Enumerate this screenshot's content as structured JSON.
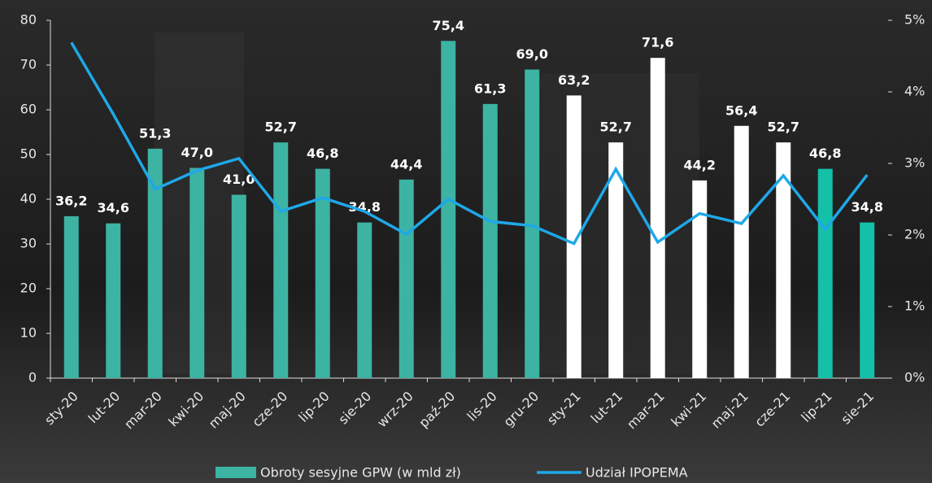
{
  "chart_data": {
    "type": "bar_line",
    "categories": [
      "sty-20",
      "lut-20",
      "mar-20",
      "kwi-20",
      "maj-20",
      "cze-20",
      "lip-20",
      "sie-20",
      "wrz-20",
      "paź-20",
      "lis-20",
      "gru-20",
      "sty-21",
      "lut-21",
      "mar-21",
      "kwi-21",
      "maj-21",
      "cze-21",
      "lip-21",
      "sie-21"
    ],
    "series": [
      {
        "name": "Obroty sesyjne GPW (w mld zł)",
        "color": "#3db3a3",
        "colors": [
          "#3db3a3",
          "#3db3a3",
          "#3db3a3",
          "#3db3a3",
          "#3db3a3",
          "#3db3a3",
          "#3db3a3",
          "#3db3a3",
          "#3db3a3",
          "#3db3a3",
          "#3db3a3",
          "#3db3a3",
          "#ffffff",
          "#ffffff",
          "#ffffff",
          "#ffffff",
          "#ffffff",
          "#ffffff",
          "#14c0a8",
          "#14c0a8"
        ],
        "values": [
          36.2,
          34.6,
          51.3,
          47.0,
          41.0,
          52.7,
          46.8,
          34.8,
          44.4,
          75.4,
          61.3,
          69.0,
          63.2,
          52.7,
          71.6,
          44.2,
          56.4,
          52.7,
          46.8,
          34.8
        ],
        "value_labels": [
          "36,2",
          "34,6",
          "51,3",
          "47,0",
          "41,0",
          "52,7",
          "46,8",
          "34,8",
          "44,4",
          "75,4",
          "61,3",
          "69,0",
          "63,2",
          "52,7",
          "71,6",
          "44,2",
          "56,4",
          "52,7",
          "46,8",
          "34,8"
        ]
      },
      {
        "name": "Udział IPOPEMA",
        "color": "#1ea8e8",
        "axis": "y2",
        "values": [
          4.69,
          3.69,
          2.64,
          2.9,
          3.07,
          2.33,
          2.52,
          2.33,
          2.01,
          2.5,
          2.19,
          2.13,
          1.88,
          2.92,
          1.9,
          2.3,
          2.16,
          2.83,
          2.08,
          2.84
        ]
      }
    ],
    "ylim": [
      0,
      80
    ],
    "yticks": [
      0,
      10,
      20,
      30,
      40,
      50,
      60,
      70,
      80
    ],
    "y2lim": [
      0,
      5
    ],
    "y2ticks": [
      {
        "value": 0,
        "label": "0%"
      },
      {
        "value": 1,
        "label": "1%"
      },
      {
        "value": 2,
        "label": "2%"
      },
      {
        "value": 3,
        "label": "3%"
      },
      {
        "value": 4,
        "label": "4%"
      },
      {
        "value": 5,
        "label": "5%"
      }
    ],
    "legend": "bottom"
  }
}
